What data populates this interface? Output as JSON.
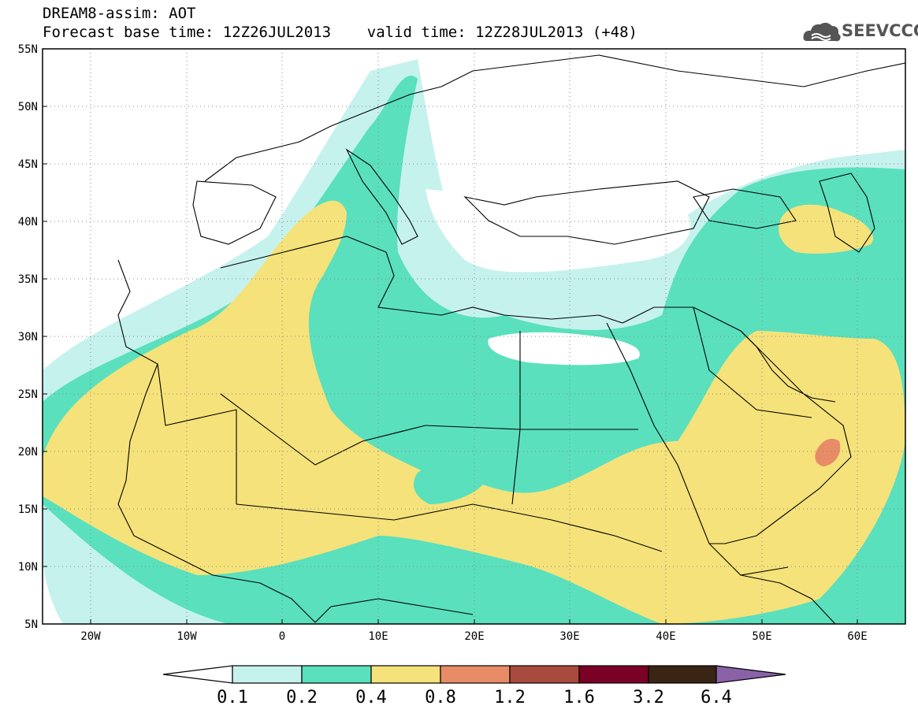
{
  "header": {
    "title_line1": "DREAM8-assim: AOT",
    "title_line2": "Forecast base time: 12Z26JUL2013    valid time: 12Z28JUL2013 (+48)"
  },
  "logo": {
    "text": "SEEVCCC",
    "icon": "cloud-icon"
  },
  "map": {
    "lat_range": [
      5,
      55
    ],
    "lon_range": [
      -25,
      65
    ],
    "lat_labels": [
      "55N",
      "50N",
      "45N",
      "40N",
      "35N",
      "30N",
      "25N",
      "20N",
      "15N",
      "10N",
      "5N"
    ],
    "lon_labels": [
      "20W",
      "10W",
      "0",
      "10E",
      "20E",
      "30E",
      "40E",
      "50E",
      "60E"
    ],
    "grid": "dotted"
  },
  "colorbar": {
    "labels": [
      "0.1",
      "0.2",
      "0.4",
      "0.8",
      "1.2",
      "1.6",
      "3.2",
      "6.4"
    ],
    "colors": [
      "#ffffff",
      "#c6f2ee",
      "#5ae0bd",
      "#f5e27a",
      "#e88c68",
      "#a84a3e",
      "#7a0025",
      "#3a2414",
      "#8a62a8"
    ]
  }
}
